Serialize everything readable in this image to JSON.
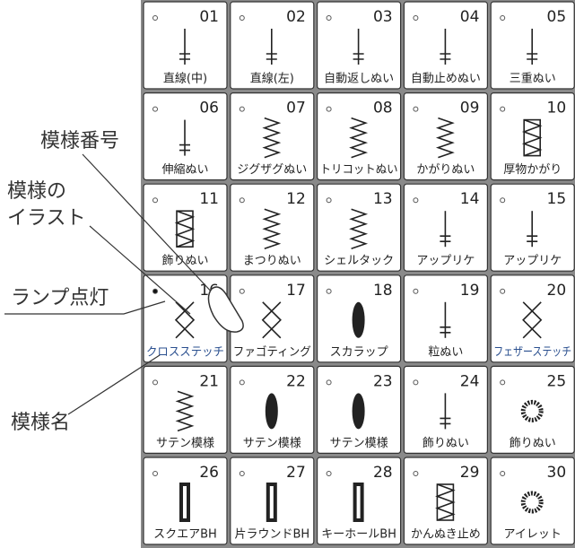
{
  "annotations": {
    "pattern_number": "模様番号",
    "illustration": [
      "模様の",
      "イラスト"
    ],
    "lamp": "ランプ点灯",
    "pattern_name": "模様名"
  },
  "cells": [
    {
      "number": "01",
      "name": "直線(中)"
    },
    {
      "number": "02",
      "name": "直線(左)"
    },
    {
      "number": "03",
      "name": "自動返しぬい"
    },
    {
      "number": "04",
      "name": "自動止めぬい"
    },
    {
      "number": "05",
      "name": "三重ぬい"
    },
    {
      "number": "06",
      "name": "伸縮ぬい"
    },
    {
      "number": "07",
      "name": "ジグザグぬい"
    },
    {
      "number": "08",
      "name": "トリコットぬい"
    },
    {
      "number": "09",
      "name": "かがりぬい"
    },
    {
      "number": "10",
      "name": "厚物かがり"
    },
    {
      "number": "11",
      "name": "飾りぬい"
    },
    {
      "number": "12",
      "name": "まつりぬい"
    },
    {
      "number": "13",
      "name": "シェルタック"
    },
    {
      "number": "14",
      "name": "アップリケ"
    },
    {
      "number": "15",
      "name": "アップリケ"
    },
    {
      "number": "16",
      "name": "クロスステッチ"
    },
    {
      "number": "17",
      "name": "ファゴティング"
    },
    {
      "number": "18",
      "name": "スカラップ"
    },
    {
      "number": "19",
      "name": "粒ぬい"
    },
    {
      "number": "20",
      "name": "フェザーステッチ"
    },
    {
      "number": "21",
      "name": "サテン模様"
    },
    {
      "number": "22",
      "name": "サテン模様"
    },
    {
      "number": "23",
      "name": "サテン模様"
    },
    {
      "number": "24",
      "name": "飾りぬい"
    },
    {
      "number": "25",
      "name": "飾りぬい"
    },
    {
      "number": "26",
      "name": "スクエアBH"
    },
    {
      "number": "27",
      "name": "片ラウンドBH"
    },
    {
      "number": "28",
      "name": "キーホールBH"
    },
    {
      "number": "29",
      "name": "かんぬき止め"
    },
    {
      "number": "30",
      "name": "アイレット"
    }
  ]
}
